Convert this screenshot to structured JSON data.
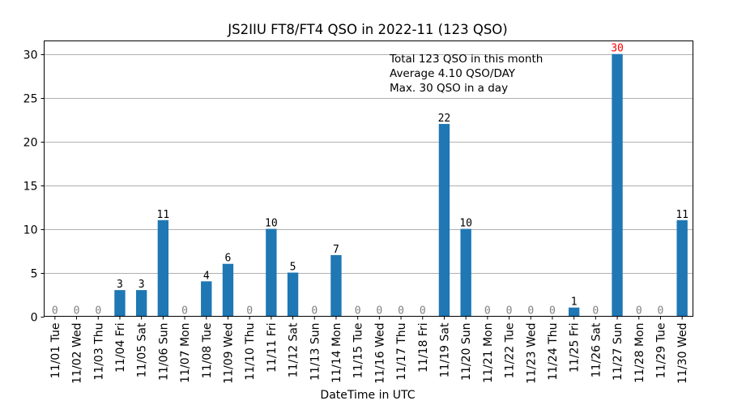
{
  "chart_data": {
    "type": "bar",
    "title": "JS2IIU FT8/FT4 QSO in 2022-11 (123 QSO)",
    "xlabel": "DateTime in UTC",
    "ylabel": "",
    "ylim": [
      0,
      31.5
    ],
    "yticks": [
      0,
      5,
      10,
      15,
      20,
      25,
      30
    ],
    "grid": "y",
    "categories": [
      "11/01 Tue",
      "11/02 Wed",
      "11/03 Thu",
      "11/04 Fri",
      "11/05 Sat",
      "11/06 Sun",
      "11/07 Mon",
      "11/08 Tue",
      "11/09 Wed",
      "11/10 Thu",
      "11/11 Fri",
      "11/12 Sat",
      "11/13 Sun",
      "11/14 Mon",
      "11/15 Tue",
      "11/16 Wed",
      "11/17 Thu",
      "11/18 Fri",
      "11/19 Sat",
      "11/20 Sun",
      "11/21 Mon",
      "11/22 Tue",
      "11/23 Wed",
      "11/24 Thu",
      "11/25 Fri",
      "11/26 Sat",
      "11/27 Sun",
      "11/28 Mon",
      "11/29 Tue",
      "11/30 Wed"
    ],
    "values": [
      0,
      0,
      0,
      3,
      3,
      11,
      0,
      4,
      6,
      0,
      10,
      5,
      0,
      7,
      0,
      0,
      0,
      0,
      22,
      10,
      0,
      0,
      0,
      0,
      1,
      0,
      30,
      0,
      0,
      11
    ],
    "annotations": [
      "Total 123 QSO in this month",
      "Average 4.10 QSO/DAY",
      "Max. 30 QSO in a day"
    ],
    "colors": {
      "bar": "#1f77b4",
      "zero_label": "#808080",
      "max_label": "#ff0000",
      "label": "#000000",
      "grid": "#b0b0b0"
    }
  }
}
